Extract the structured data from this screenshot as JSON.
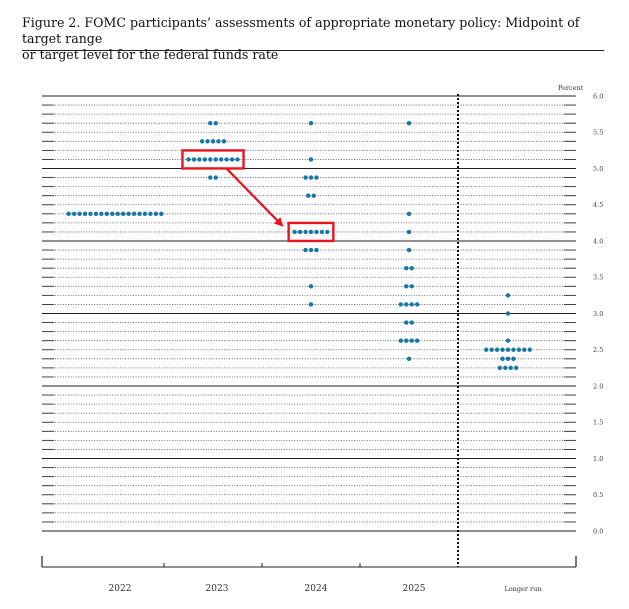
{
  "figure": {
    "title_line1": "Figure 2.  FOMC participants’ assessments of appropriate monetary policy: Midpoint of target range",
    "title_line2": "or target level for the federal funds rate"
  },
  "colors": {
    "dot": "#1578a8",
    "highlight": "#e8141c",
    "axis": "#222222"
  },
  "chart_data": {
    "type": "scatter",
    "unit_label": "Percent",
    "ylim": [
      0,
      6.0
    ],
    "y_ticks": [
      "0.0",
      "0.5",
      "1.0",
      "1.5",
      "2.0",
      "2.5",
      "3.0",
      "3.5",
      "4.0",
      "4.5",
      "5.0",
      "5.5",
      "6.0"
    ],
    "y_tick_values": [
      0,
      0.5,
      1.0,
      1.5,
      2.0,
      2.5,
      3.0,
      3.5,
      4.0,
      4.5,
      5.0,
      5.5,
      6.0
    ],
    "grid_step": 0.125,
    "grid": "dotted at each 0.125, solid at each 0.5",
    "categories": [
      "2022",
      "2023",
      "2024",
      "2025",
      "Longer run"
    ],
    "divider_between": [
      "2025",
      "Longer run"
    ],
    "dots": [
      {
        "category": "2022",
        "points": [
          {
            "y": 4.375,
            "count": 18
          }
        ]
      },
      {
        "category": "2023",
        "points": [
          {
            "y": 5.625,
            "count": 2
          },
          {
            "y": 5.375,
            "count": 5
          },
          {
            "y": 5.125,
            "count": 10
          },
          {
            "y": 4.875,
            "count": 2
          }
        ]
      },
      {
        "category": "2024",
        "points": [
          {
            "y": 5.625,
            "count": 1
          },
          {
            "y": 5.125,
            "count": 1
          },
          {
            "y": 4.875,
            "count": 3
          },
          {
            "y": 4.625,
            "count": 2
          },
          {
            "y": 4.125,
            "count": 7
          },
          {
            "y": 3.875,
            "count": 3
          },
          {
            "y": 3.375,
            "count": 1
          },
          {
            "y": 3.125,
            "count": 1
          }
        ]
      },
      {
        "category": "2025",
        "points": [
          {
            "y": 5.625,
            "count": 1
          },
          {
            "y": 4.375,
            "count": 1
          },
          {
            "y": 4.125,
            "count": 1
          },
          {
            "y": 3.875,
            "count": 1
          },
          {
            "y": 3.625,
            "count": 2
          },
          {
            "y": 3.375,
            "count": 2
          },
          {
            "y": 3.125,
            "count": 4
          },
          {
            "y": 2.875,
            "count": 2
          },
          {
            "y": 2.625,
            "count": 4
          },
          {
            "y": 2.375,
            "count": 1
          }
        ]
      },
      {
        "category": "Longer run",
        "points": [
          {
            "y": 3.25,
            "count": 1
          },
          {
            "y": 3.0,
            "count": 1
          },
          {
            "y": 2.625,
            "count": 1
          },
          {
            "y": 2.5,
            "count": 9
          },
          {
            "y": 2.375,
            "count": 3
          },
          {
            "y": 2.25,
            "count": 4
          }
        ]
      }
    ],
    "highlights": [
      {
        "category": "2023",
        "y": 5.125
      },
      {
        "category": "2024",
        "y": 4.125
      }
    ],
    "arrow": {
      "from": {
        "category": "2023",
        "y": 5.125
      },
      "to": {
        "category": "2024",
        "y": 4.125
      }
    }
  }
}
